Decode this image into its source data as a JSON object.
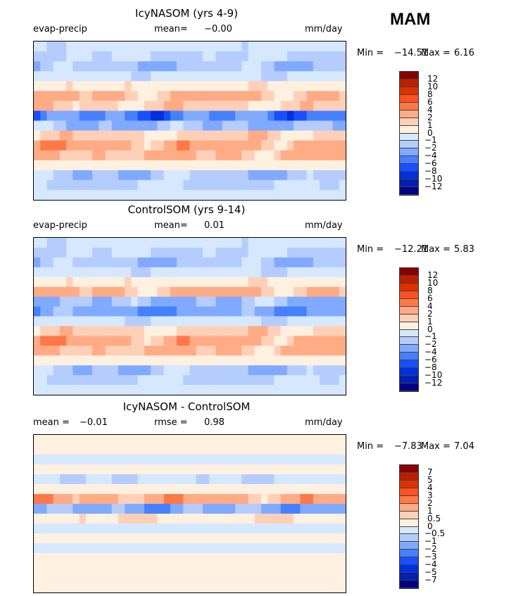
{
  "season": "MAM",
  "bins_colors": [
    "#00008b",
    "#0020b0",
    "#0030dd",
    "#1850ff",
    "#4580ff",
    "#80aaff",
    "#b5ccff",
    "#d5e8ff",
    "#fff0e0",
    "#ffd0b8",
    "#ffab85",
    "#ff7848",
    "#ff5020",
    "#e03000",
    "#b82000",
    "#8b0000"
  ],
  "chart_data": [
    {
      "type": "heatmap",
      "title": "IcyNASOM (yrs 4-9)",
      "variable": "evap-precip",
      "mean_label": "mean=",
      "mean": "-0.00",
      "units": "mm/day",
      "min_label": "Min =",
      "min": "-14.51",
      "max_label": "Max =",
      "max": "6.16",
      "levels": [
        "12",
        "10",
        "8",
        "6",
        "4",
        "2",
        "1",
        "0",
        "-1",
        "-2",
        "-4",
        "-6",
        "-8",
        "-10",
        "-12"
      ],
      "level_values": [
        -12,
        -10,
        -8,
        -6,
        -4,
        -2,
        -1,
        0,
        1,
        2,
        4,
        6,
        8,
        10,
        12
      ],
      "zonal_bands_N_to_S": [
        -1,
        -1.5,
        -2.5,
        -1,
        1,
        3,
        2,
        -7,
        -3,
        2,
        4,
        3,
        0.5,
        -2.5,
        -1.5,
        -0.5
      ]
    },
    {
      "type": "heatmap",
      "title": "ControlSOM (yrs 9-14)",
      "variable": "evap-precip",
      "mean_label": "mean=",
      "mean": "0.01",
      "units": "mm/day",
      "min_label": "Min =",
      "min": "-12.21",
      "max_label": "Max =",
      "max": "5.83",
      "levels": [
        "12",
        "10",
        "8",
        "6",
        "4",
        "2",
        "1",
        "0",
        "-1",
        "-2",
        "-4",
        "-6",
        "-8",
        "-10",
        "-12"
      ],
      "level_values": [
        -12,
        -10,
        -8,
        -6,
        -4,
        -2,
        -1,
        0,
        1,
        2,
        4,
        6,
        8,
        10,
        12
      ],
      "zonal_bands_N_to_S": [
        -1,
        -1.5,
        -2.5,
        -1,
        1,
        3,
        -3,
        -5,
        -1,
        2,
        4,
        3,
        0.5,
        -2.5,
        -1.5,
        -0.5
      ]
    },
    {
      "type": "heatmap",
      "title": "IcyNASOM - ControlSOM",
      "variable": "",
      "mean_label": "mean =",
      "mean": "-0.01",
      "rmse_label": "rmse =",
      "rmse": "0.98",
      "units": "mm/day",
      "min_label": "Min =",
      "min": "-7.83",
      "max_label": "Max =",
      "max": "7.04",
      "levels": [
        "7",
        "5",
        "4",
        "3",
        "2",
        "1",
        "0.5",
        "0",
        "-0.5",
        "-1",
        "-2",
        "-3",
        "-4",
        "-5",
        "-7"
      ],
      "level_values": [
        -7,
        -5,
        -4,
        -3,
        -2,
        -1,
        -0.5,
        0,
        0.5,
        1,
        2,
        3,
        4,
        5,
        7
      ],
      "zonal_bands_N_to_S": [
        0.3,
        0.2,
        -0.3,
        0.2,
        -0.6,
        0.4,
        2,
        -2,
        0.6,
        -0.3,
        0.2,
        -0.2,
        0.3,
        0.2,
        0.2,
        0.1
      ]
    }
  ]
}
